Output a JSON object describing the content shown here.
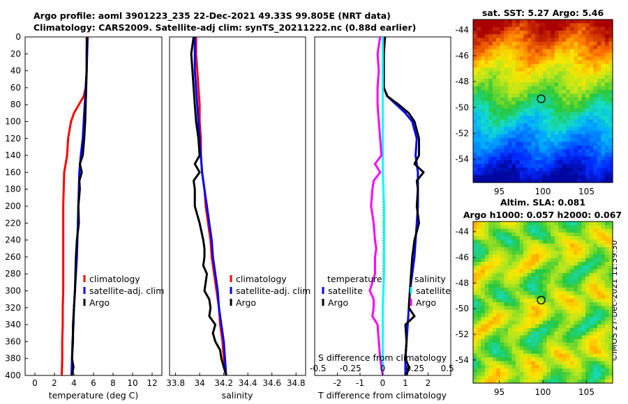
{
  "header": {
    "line1": "Argo profile: aoml 3901223_235 22-Dec-2021 49.33S 99.805E (NRT data)",
    "line2": "Climatology: CARS2009. Satellite-adj clim: synTS_20211222.nc (0.88d earlier)"
  },
  "colors": {
    "climatology": "#ff0000",
    "satellite": "#0000ff",
    "argo": "#000000",
    "sal_sat": "#00ffff",
    "sal_diff": "#ff00ff"
  },
  "chart_data": [
    {
      "type": "line",
      "name": "temperature-profile",
      "xlabel": "temperature (deg C)",
      "ylabel": "depth",
      "xlim": [
        -1,
        13
      ],
      "ylim": [
        0,
        400
      ],
      "xticks": [
        "0",
        "2",
        "4",
        "6",
        "8",
        "10",
        "12"
      ],
      "yticks": [
        "0",
        "20",
        "40",
        "60",
        "80",
        "100",
        "120",
        "140",
        "160",
        "180",
        "200",
        "220",
        "240",
        "260",
        "280",
        "300",
        "320",
        "340",
        "360",
        "380",
        "400"
      ],
      "legend": [
        "climatology",
        "satellite-adj. clim",
        "Argo"
      ],
      "series": [
        {
          "name": "climatology",
          "depth": [
            0,
            20,
            40,
            60,
            70,
            80,
            90,
            100,
            120,
            140,
            160,
            180,
            200,
            220,
            240,
            260,
            280,
            300,
            320,
            340,
            360,
            380,
            400
          ],
          "values": [
            5.3,
            5.3,
            5.3,
            5.2,
            5.0,
            4.5,
            4.0,
            3.7,
            3.4,
            3.3,
            3.0,
            2.95,
            2.9,
            2.9,
            2.9,
            2.9,
            2.9,
            2.9,
            2.85,
            2.85,
            2.8,
            2.8,
            2.75
          ]
        },
        {
          "name": "satellite-adj. clim",
          "depth": [
            0,
            20,
            40,
            60,
            80,
            100,
            120,
            140,
            160,
            180,
            200,
            220,
            240,
            260,
            280,
            300,
            320,
            340,
            360,
            380,
            400
          ],
          "values": [
            5.4,
            5.35,
            5.3,
            5.2,
            5.1,
            5.0,
            4.9,
            4.7,
            4.55,
            4.5,
            4.45,
            4.4,
            4.35,
            4.3,
            4.2,
            4.1,
            4.0,
            3.95,
            3.85,
            3.8,
            3.75
          ]
        },
        {
          "name": "Argo",
          "depth": [
            0,
            20,
            40,
            60,
            80,
            100,
            120,
            140,
            150,
            160,
            170,
            180,
            200,
            220,
            240,
            260,
            280,
            300,
            320,
            340,
            360,
            380,
            390,
            400
          ],
          "values": [
            5.35,
            5.3,
            5.3,
            5.25,
            5.2,
            5.15,
            5.05,
            4.9,
            4.6,
            4.8,
            4.55,
            4.6,
            4.45,
            4.5,
            4.3,
            4.2,
            4.15,
            4.1,
            4.0,
            3.9,
            3.9,
            3.8,
            3.95,
            3.8
          ]
        }
      ]
    },
    {
      "type": "line",
      "name": "salinity-profile",
      "xlabel": "salinity",
      "ylabel": "depth",
      "xlim": [
        33.75,
        34.88
      ],
      "ylim": [
        0,
        400
      ],
      "xticks": [
        "33.8",
        "34",
        "34.2",
        "34.4",
        "34.6",
        "34.8"
      ],
      "legend": [
        "climatology",
        "satellite-adj. clim",
        "Argo"
      ],
      "series": [
        {
          "name": "climatology",
          "depth": [
            0,
            20,
            40,
            60,
            80,
            100,
            120,
            140,
            160,
            180,
            200,
            220,
            240,
            260,
            280,
            300,
            320,
            340,
            360,
            380,
            400
          ],
          "values": [
            33.97,
            33.97,
            33.98,
            33.99,
            34.0,
            34.0,
            34.01,
            34.01,
            34.02,
            34.04,
            34.05,
            34.07,
            34.09,
            34.1,
            34.12,
            34.14,
            34.16,
            34.17,
            34.19,
            34.2,
            34.22
          ]
        },
        {
          "name": "satellite-adj. clim",
          "depth": [
            0,
            20,
            40,
            60,
            80,
            100,
            120,
            140,
            160,
            180,
            200,
            220,
            240,
            260,
            280,
            300,
            320,
            340,
            360,
            380,
            400
          ],
          "values": [
            33.96,
            33.96,
            33.96,
            33.97,
            33.98,
            33.99,
            34.0,
            34.01,
            34.02,
            34.04,
            34.06,
            34.08,
            34.1,
            34.11,
            34.13,
            34.15,
            34.16,
            34.18,
            34.2,
            34.21,
            34.22
          ]
        },
        {
          "name": "Argo",
          "depth": [
            0,
            20,
            40,
            60,
            80,
            100,
            120,
            140,
            150,
            160,
            170,
            180,
            200,
            220,
            240,
            250,
            260,
            270,
            280,
            290,
            300,
            310,
            320,
            330,
            340,
            350,
            360,
            370,
            380,
            390,
            400
          ],
          "values": [
            33.95,
            33.93,
            33.94,
            33.95,
            33.96,
            33.97,
            33.99,
            34.0,
            33.96,
            34.0,
            33.95,
            33.96,
            33.96,
            34.0,
            34.03,
            34.04,
            34.04,
            34.03,
            34.06,
            34.05,
            34.04,
            34.08,
            34.09,
            34.08,
            34.13,
            34.11,
            34.13,
            34.17,
            34.18,
            34.2,
            34.22
          ]
        }
      ]
    },
    {
      "type": "line",
      "name": "difference-profile",
      "xlabel": "T difference from climatology",
      "xlabel2": "S difference from climatology",
      "xlim": [
        -3,
        3
      ],
      "ylim": [
        0,
        400
      ],
      "xticks": [
        "-2",
        "-1",
        "0",
        "1",
        "2"
      ],
      "x2ticks": [
        "-0.5",
        "-0.25",
        "0",
        "0.25",
        "0.5"
      ],
      "legend_left": {
        "title": "temperature",
        "items": [
          "satellite",
          "Argo"
        ]
      },
      "legend_right": {
        "title": "salinity",
        "items": [
          "satellite",
          "Argo"
        ]
      },
      "series": [
        {
          "name": "T satellite",
          "depth": [
            0,
            20,
            40,
            60,
            70,
            80,
            90,
            100,
            120,
            140,
            160,
            180,
            200,
            220,
            240,
            260,
            280,
            300,
            320,
            340,
            360,
            380,
            400
          ],
          "values": [
            0.05,
            0.05,
            0.0,
            0.05,
            0.2,
            0.6,
            1.0,
            1.3,
            1.5,
            1.45,
            1.55,
            1.55,
            1.55,
            1.5,
            1.45,
            1.4,
            1.3,
            1.2,
            1.15,
            1.1,
            1.05,
            1.0,
            1.0
          ]
        },
        {
          "name": "T Argo",
          "depth": [
            0,
            20,
            40,
            60,
            70,
            80,
            90,
            100,
            120,
            140,
            150,
            160,
            170,
            180,
            200,
            220,
            240,
            260,
            280,
            300,
            320,
            330,
            340,
            360,
            380,
            390,
            400
          ],
          "values": [
            0.1,
            0.05,
            0.05,
            0.05,
            0.2,
            0.7,
            1.15,
            1.4,
            1.6,
            1.6,
            1.4,
            1.8,
            1.5,
            1.55,
            1.5,
            1.6,
            1.4,
            1.3,
            1.25,
            1.2,
            1.15,
            1.4,
            1.0,
            1.05,
            1.0,
            1.15,
            1.05
          ]
        },
        {
          "name": "S satellite",
          "depth": [
            0,
            40,
            80,
            120,
            160,
            200,
            240,
            280,
            320,
            360,
            400
          ],
          "values": [
            0.0,
            0.0,
            0.0,
            0.0,
            0.0,
            0.01,
            0.01,
            0.01,
            0.0,
            0.0,
            0.0
          ]
        },
        {
          "name": "S Argo",
          "depth": [
            0,
            20,
            40,
            60,
            80,
            100,
            120,
            140,
            150,
            160,
            170,
            180,
            200,
            220,
            240,
            250,
            260,
            280,
            300,
            310,
            320,
            330,
            340,
            360,
            380,
            400
          ],
          "values": [
            -0.02,
            -0.04,
            -0.03,
            -0.04,
            -0.04,
            -0.03,
            -0.02,
            -0.01,
            -0.06,
            -0.02,
            -0.07,
            -0.08,
            -0.09,
            -0.07,
            -0.06,
            -0.05,
            -0.06,
            -0.06,
            -0.1,
            -0.07,
            -0.07,
            -0.08,
            -0.04,
            -0.03,
            -0.02,
            0.0
          ]
        }
      ]
    },
    {
      "type": "heatmap",
      "name": "sst-map",
      "title": "sat. SST: 5.27  Argo: 5.46",
      "xticks": [
        "95",
        "100",
        "105"
      ],
      "yticks": [
        "-44",
        "-46",
        "-48",
        "-50",
        "-52",
        "-54"
      ],
      "xlim": [
        92,
        108
      ],
      "ylim": [
        -55.8,
        -43.2
      ],
      "marker": {
        "lon": 99.805,
        "lat": -49.33
      }
    },
    {
      "type": "heatmap",
      "name": "sla-map",
      "title": "Altim. SLA: 0.081",
      "subtitle": "Argo h1000: 0.057 h2000: 0.067",
      "xticks": [
        "95",
        "100",
        "105"
      ],
      "yticks": [
        "-44",
        "-46",
        "-48",
        "-50",
        "-52",
        "-54"
      ],
      "xlim": [
        92,
        108
      ],
      "ylim": [
        -55.8,
        -43.2
      ],
      "marker": {
        "lon": 99.805,
        "lat": -49.33
      }
    }
  ],
  "footer": {
    "credit": "©IMOS 27-Dec-2021 11:39:30"
  }
}
